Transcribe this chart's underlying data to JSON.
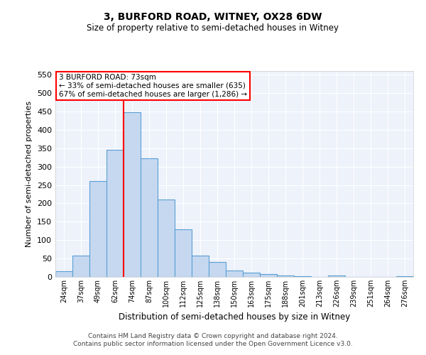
{
  "title": "3, BURFORD ROAD, WITNEY, OX28 6DW",
  "subtitle": "Size of property relative to semi-detached houses in Witney",
  "xlabel": "Distribution of semi-detached houses by size in Witney",
  "ylabel": "Number of semi-detached properties",
  "categories": [
    "24sqm",
    "37sqm",
    "49sqm",
    "62sqm",
    "74sqm",
    "87sqm",
    "100sqm",
    "112sqm",
    "125sqm",
    "138sqm",
    "150sqm",
    "163sqm",
    "175sqm",
    "188sqm",
    "201sqm",
    "213sqm",
    "226sqm",
    "239sqm",
    "251sqm",
    "264sqm",
    "276sqm"
  ],
  "values": [
    15,
    58,
    260,
    345,
    448,
    322,
    210,
    130,
    57,
    40,
    17,
    12,
    7,
    4,
    1,
    0,
    3,
    0,
    0,
    0,
    2
  ],
  "bar_color": "#c5d8f0",
  "bar_edge_color": "#5a9fd4",
  "vline_color": "red",
  "annotation_title": "3 BURFORD ROAD: 73sqm",
  "annotation_line1": "← 33% of semi-detached houses are smaller (635)",
  "annotation_line2": "67% of semi-detached houses are larger (1,286) →",
  "annotation_box_color": "white",
  "annotation_box_edge": "red",
  "ylim": [
    0,
    560
  ],
  "yticks": [
    0,
    50,
    100,
    150,
    200,
    250,
    300,
    350,
    400,
    450,
    500,
    550
  ],
  "footer1": "Contains HM Land Registry data © Crown copyright and database right 2024.",
  "footer2": "Contains public sector information licensed under the Open Government Licence v3.0.",
  "bg_color": "#eef2fb",
  "title_fontsize": 10,
  "subtitle_fontsize": 9
}
